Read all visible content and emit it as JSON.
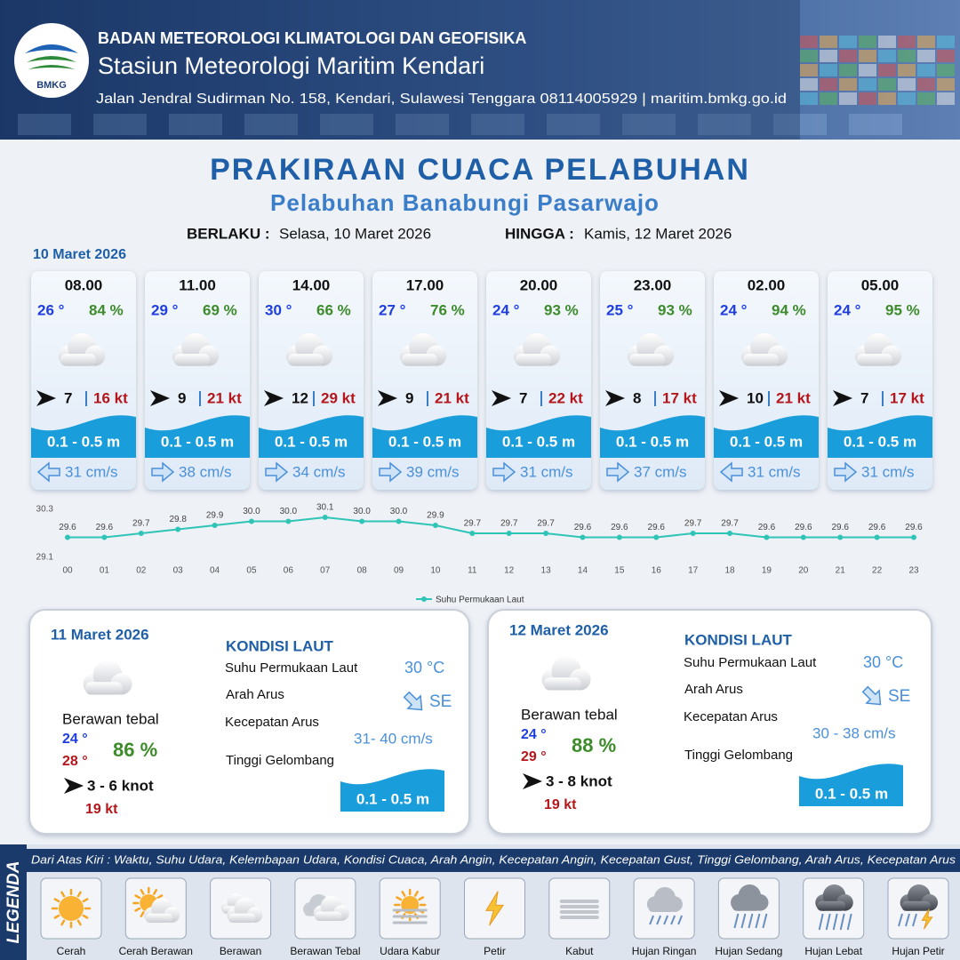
{
  "header": {
    "logo": "BMKG",
    "org": "BADAN METEOROLOGI KLIMATOLOGI DAN GEOFISIKA",
    "station": "Stasiun Meteorologi Maritim Kendari",
    "address": "Jalan Jendral Sudirman No. 158, Kendari, Sulawesi Tenggara  08114005929 | maritim.bmkg.go.id"
  },
  "title": "PRAKIRAAN CUACA PELABUHAN",
  "subtitle": "Pelabuhan Banabungi Pasarwajo",
  "validity": {
    "from_label": "BERLAKU :",
    "from": "Selasa, 10 Maret 2026",
    "to_label": "HINGGA :",
    "to": "Kamis, 12 Maret 2026"
  },
  "today": {
    "date": "10 Maret 2026",
    "slots": [
      {
        "time": "08.00",
        "temp": "26 °",
        "humidity": "84 %",
        "wind": "7",
        "gust": "16 kt",
        "wave": "0.1 - 0.5 m",
        "current": "31 cm/s",
        "current_arrow": "left"
      },
      {
        "time": "11.00",
        "temp": "29 °",
        "humidity": "69 %",
        "wind": "9",
        "gust": "21 kt",
        "wave": "0.1 - 0.5 m",
        "current": "38 cm/s",
        "current_arrow": "right"
      },
      {
        "time": "14.00",
        "temp": "30 °",
        "humidity": "66 %",
        "wind": "12",
        "gust": "29 kt",
        "wave": "0.1 - 0.5 m",
        "current": "34 cm/s",
        "current_arrow": "right"
      },
      {
        "time": "17.00",
        "temp": "27 °",
        "humidity": "76 %",
        "wind": "9",
        "gust": "21 kt",
        "wave": "0.1 - 0.5 m",
        "current": "39 cm/s",
        "current_arrow": "right"
      },
      {
        "time": "20.00",
        "temp": "24 °",
        "humidity": "93 %",
        "wind": "7",
        "gust": "22 kt",
        "wave": "0.1 - 0.5 m",
        "current": "31 cm/s",
        "current_arrow": "right"
      },
      {
        "time": "23.00",
        "temp": "25 °",
        "humidity": "93 %",
        "wind": "8",
        "gust": "17 kt",
        "wave": "0.1 - 0.5 m",
        "current": "37 cm/s",
        "current_arrow": "right"
      },
      {
        "time": "02.00",
        "temp": "24 °",
        "humidity": "94 %",
        "wind": "10",
        "gust": "21 kt",
        "wave": "0.1 - 0.5 m",
        "current": "31 cm/s",
        "current_arrow": "left"
      },
      {
        "time": "05.00",
        "temp": "24 °",
        "humidity": "95 %",
        "wind": "7",
        "gust": "17 kt",
        "wave": "0.1 - 0.5 m",
        "current": "31 cm/s",
        "current_arrow": "right"
      }
    ]
  },
  "chart_data": {
    "type": "line",
    "categories": [
      "00",
      "01",
      "02",
      "03",
      "04",
      "05",
      "06",
      "07",
      "08",
      "09",
      "10",
      "11",
      "12",
      "13",
      "14",
      "15",
      "16",
      "17",
      "18",
      "19",
      "20",
      "21",
      "22",
      "23"
    ],
    "series": [
      {
        "name": "Suhu Permukaan Laut",
        "color": "#2ec4b6",
        "values": [
          29.6,
          29.6,
          29.7,
          29.8,
          29.9,
          30.0,
          30.0,
          30.1,
          30.0,
          30.0,
          29.9,
          29.7,
          29.7,
          29.7,
          29.6,
          29.6,
          29.6,
          29.7,
          29.7,
          29.6,
          29.6,
          29.6,
          29.6,
          29.6
        ],
        "value_labels": [
          "29.6",
          "29.6",
          "29.7",
          "29.8",
          "29.9",
          "30.0",
          "30.0",
          "30.1",
          "30.0",
          "30.0",
          "29.9",
          "29.7",
          "29.7",
          "29.7",
          "29.6",
          "29.6",
          "29.6",
          "29.7",
          "29.7",
          "29.6",
          "29.6",
          "29.6",
          "29.6",
          "29.6"
        ]
      }
    ],
    "ylim": [
      29.1,
      30.3
    ],
    "yticks": [
      29.1,
      30.3
    ],
    "legend": "bottom"
  },
  "days": [
    {
      "date": "11 Maret 2026",
      "condition": "Berawan tebal",
      "temp_min": "24 °",
      "temp_max": "28 °",
      "humidity": "86 %",
      "wind": "3  - 6 knot",
      "gust": "19 kt",
      "sea_title": "KONDISI LAUT",
      "sst_label": "Suhu Permukaan Laut",
      "sst": "30 °C",
      "dir_label": "Arah Arus",
      "dir": "SE",
      "speed_label": "Kecepatan Arus",
      "speed": "31- 40 cm/s",
      "wave_label": "Tinggi Gelombang",
      "wave": "0.1 - 0.5 m"
    },
    {
      "date": "12 Maret 2026",
      "condition": "Berawan tebal",
      "temp_min": "24 °",
      "temp_max": "29 °",
      "humidity": "88 %",
      "wind": "3  - 8 knot",
      "gust": "19 kt",
      "sea_title": "KONDISI LAUT",
      "sst_label": "Suhu Permukaan Laut",
      "sst": "30 °C",
      "dir_label": "Arah Arus",
      "dir": "SE",
      "speed_label": "Kecepatan Arus",
      "speed": "30 - 38 cm/s",
      "wave_label": "Tinggi Gelombang",
      "wave": "0.1 - 0.5 m"
    }
  ],
  "legend": {
    "title": "LEGENDA",
    "note": "Dari Atas Kiri : Waktu, Suhu Udara, Kelembapan Udara, Kondisi Cuaca, Arah Angin, Kecepatan Angin, Kecepatan Gust, Tinggi Gelombang, Arah Arus, Kecepatan Arus",
    "items": [
      "Cerah",
      "Cerah Berawan",
      "Berawan",
      "Berawan Tebal",
      "Udara Kabur",
      "Petir",
      "Kabut",
      "Hujan Ringan",
      "Hujan Sedang",
      "Hujan Lebat",
      "Hujan Petir"
    ]
  }
}
